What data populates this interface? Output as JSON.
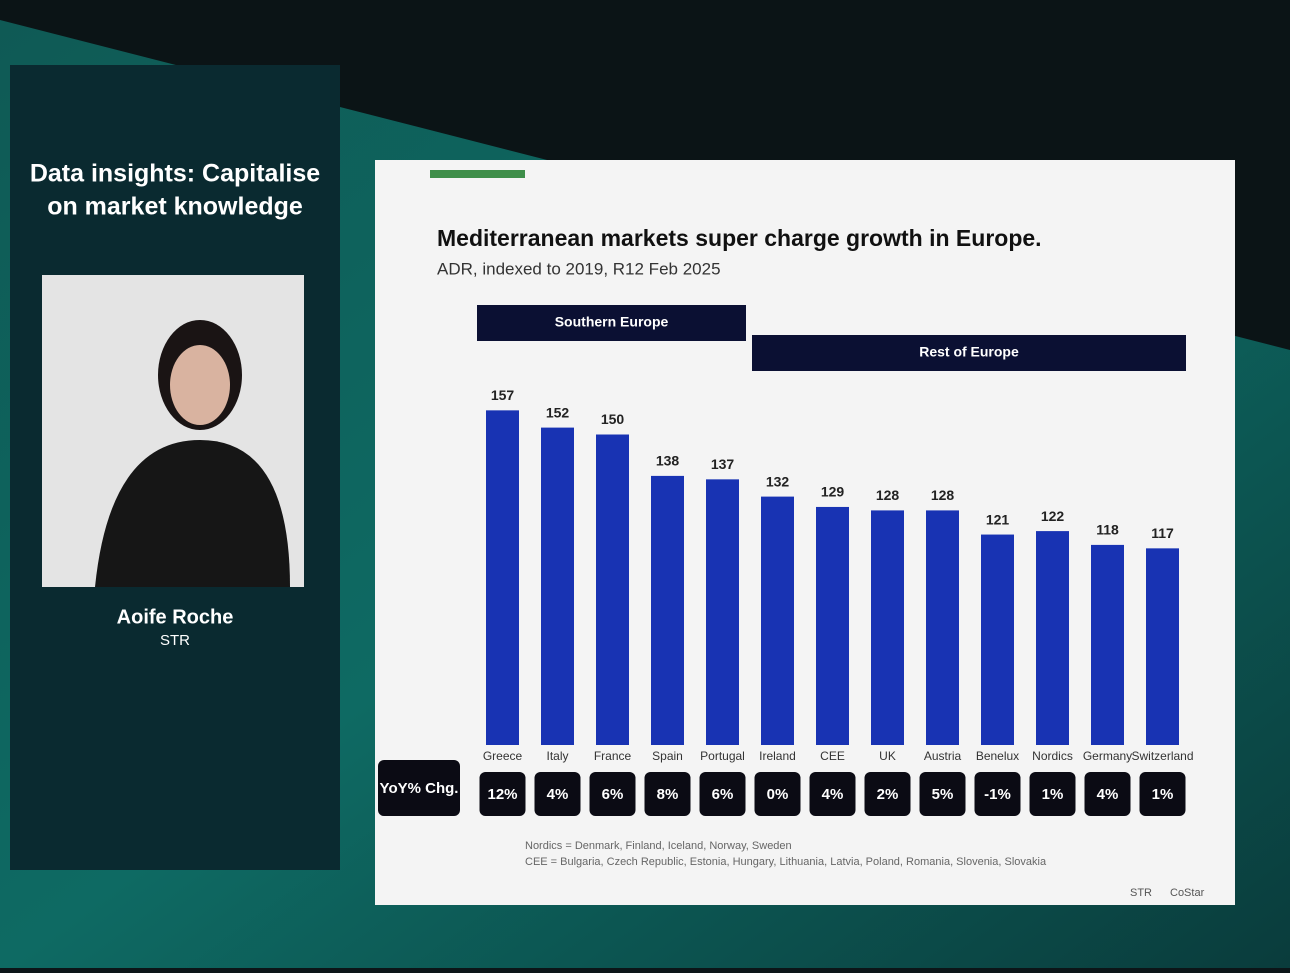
{
  "speaker": {
    "session_title": [
      "Data insights: Capitalise",
      "on market knowledge"
    ],
    "name": "Aoife Roche",
    "company": "STR"
  },
  "chart_data": {
    "type": "bar",
    "title": "Mediterranean markets super charge growth in Europe.",
    "subtitle": "ADR, indexed to 2019, R12 Feb 2025",
    "groups": [
      "Southern Europe",
      "Rest of Europe"
    ],
    "categories": [
      "Greece",
      "Italy",
      "France",
      "Spain",
      "Portugal",
      "Ireland",
      "CEE",
      "UK",
      "Austria",
      "Benelux",
      "Nordics",
      "Germany",
      "Switzerland"
    ],
    "values": [
      157,
      152,
      150,
      138,
      137,
      132,
      129,
      128,
      128,
      121,
      122,
      118,
      117
    ],
    "color": "#1833b3",
    "ylim": [
      60,
      160
    ],
    "yoy": {
      "label": "YoY% Chg.",
      "values": [
        12,
        4,
        6,
        8,
        6,
        0,
        4,
        2,
        5,
        -1,
        1,
        4,
        1
      ],
      "value_labels": [
        "12%",
        "4%",
        "6%",
        "8%",
        "6%",
        "0%",
        "4%",
        "2%",
        "5%",
        "-1%",
        "1%",
        "4%",
        "1%"
      ]
    },
    "notes": [
      "Nordics = Denmark, Finland, Iceland, Norway, Sweden",
      "CEE = Bulgaria, Czech Republic, Estonia, Hungary, Lithuania, Latvia, Poland, Romania, Slovenia, Slovakia"
    ],
    "logos": [
      "STR",
      "CoStar"
    ]
  }
}
